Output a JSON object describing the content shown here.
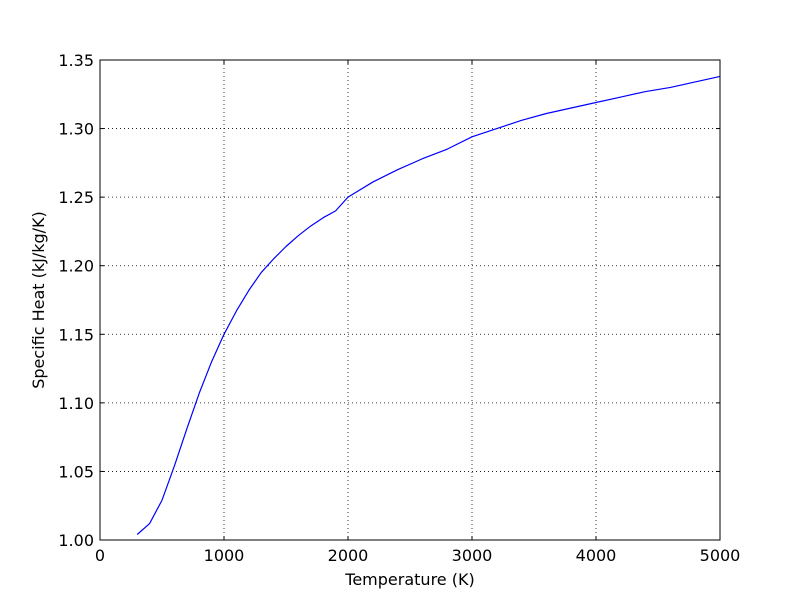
{
  "chart_data": {
    "type": "line",
    "title": "",
    "xlabel": "Temperature (K)",
    "ylabel": "Specific Heat (kJ/kg/K)",
    "xlim": [
      0,
      5000
    ],
    "ylim": [
      1.0,
      1.35
    ],
    "xticks": [
      0,
      1000,
      2000,
      3000,
      4000,
      5000
    ],
    "xtick_labels": [
      "0",
      "1000",
      "2000",
      "3000",
      "4000",
      "5000"
    ],
    "yticks": [
      1.0,
      1.05,
      1.1,
      1.15,
      1.2,
      1.25,
      1.3,
      1.35
    ],
    "ytick_labels": [
      "1.00",
      "1.05",
      "1.10",
      "1.15",
      "1.20",
      "1.25",
      "1.30",
      "1.35"
    ],
    "grid": true,
    "legend": "none",
    "series": [
      {
        "color": "#0000ff",
        "x": [
          300,
          400,
          500,
          600,
          700,
          800,
          900,
          1000,
          1100,
          1200,
          1300,
          1400,
          1500,
          1600,
          1700,
          1800,
          1900,
          2000,
          2200,
          2400,
          2600,
          2800,
          3000,
          3200,
          3400,
          3600,
          3800,
          4000,
          4200,
          4400,
          4600,
          4800,
          5000
        ],
        "y": [
          1.004,
          1.012,
          1.029,
          1.054,
          1.081,
          1.107,
          1.13,
          1.15,
          1.167,
          1.182,
          1.195,
          1.205,
          1.214,
          1.222,
          1.229,
          1.235,
          1.24,
          1.25,
          1.261,
          1.27,
          1.278,
          1.285,
          1.294,
          1.3,
          1.306,
          1.311,
          1.315,
          1.319,
          1.323,
          1.327,
          1.33,
          1.334,
          1.338
        ]
      }
    ]
  }
}
